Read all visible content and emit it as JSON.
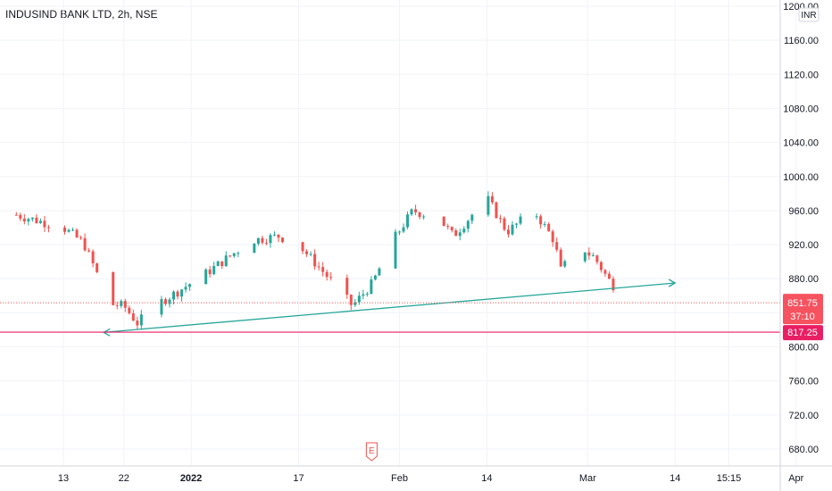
{
  "title": "INDUSIND BANK LTD, 2h, NSE",
  "currency": "INR",
  "colors": {
    "up": "#26a69a",
    "down": "#ef5350",
    "trendline": "#26a69a",
    "support": "#e91e63",
    "grid": "#f0f3fa",
    "text": "#131722"
  },
  "price_tags": {
    "last": "851.75",
    "countdown": "37:10",
    "support": "817.25"
  },
  "earnings_marker": "E",
  "chart_data": {
    "type": "candlestick",
    "title": "INDUSIND BANK LTD, 2h, NSE",
    "y_unit": "INR",
    "ylim": [
      665,
      1212
    ],
    "y_ticks": [
      680,
      720,
      760,
      800,
      840,
      880,
      920,
      960,
      1000,
      1040,
      1080,
      1120,
      1160,
      1200
    ],
    "y_tick_labels": [
      "680.00",
      "720.00",
      "760.00",
      "800.00",
      "",
      "880.00",
      "920.00",
      "960.00",
      "1000.00",
      "1040.00",
      "1080.00",
      "1120.00",
      "1160.00",
      "1200.00"
    ],
    "x_ticks": [
      {
        "label": "13",
        "date": "2021-12-13"
      },
      {
        "label": "22",
        "date": "2021-12-22"
      },
      {
        "label": "2022",
        "date": "2022-01-01",
        "bold": true
      },
      {
        "label": "17",
        "date": "2022-01-17"
      },
      {
        "label": "Feb",
        "date": "2022-02-01"
      },
      {
        "label": "14",
        "date": "2022-02-14"
      },
      {
        "label": "Mar",
        "date": "2022-03-01"
      },
      {
        "label": "14",
        "date": "2022-03-14"
      },
      {
        "label": "15:15",
        "date": "2022-03-22"
      },
      {
        "label": "Apr",
        "date": "2022-04-01"
      }
    ],
    "trend_path": [
      [
        "2021-12-06",
        955
      ],
      [
        "2021-12-13",
        940
      ],
      [
        "2021-12-16",
        922
      ],
      [
        "2021-12-20",
        850
      ],
      [
        "2021-12-22",
        848
      ],
      [
        "2021-12-24",
        828
      ],
      [
        "2021-12-27",
        850
      ],
      [
        "2022-01-03",
        885
      ],
      [
        "2022-01-10",
        925
      ],
      [
        "2022-01-14",
        930
      ],
      [
        "2022-01-17",
        920
      ],
      [
        "2022-01-21",
        885
      ],
      [
        "2022-01-25",
        848
      ],
      [
        "2022-01-28",
        875
      ],
      [
        "2022-01-31",
        925
      ],
      [
        "2022-02-03",
        960
      ],
      [
        "2022-02-07",
        950
      ],
      [
        "2022-02-09",
        930
      ],
      [
        "2022-02-14",
        975
      ],
      [
        "2022-02-17",
        935
      ],
      [
        "2022-02-21",
        960
      ],
      [
        "2022-02-24",
        925
      ],
      [
        "2022-02-25",
        890
      ],
      [
        "2022-02-28",
        920
      ],
      [
        "2022-03-01",
        910
      ],
      [
        "2022-03-02",
        905
      ],
      [
        "2022-03-04",
        880
      ],
      [
        "2022-03-07",
        851.75
      ]
    ],
    "lines": [
      {
        "name": "trendline",
        "from": [
          "2021-12-19",
          817
        ],
        "to": [
          "2022-03-14",
          875
        ]
      },
      {
        "name": "support",
        "value": 817.25
      },
      {
        "name": "last-price",
        "value": 851.75
      }
    ]
  }
}
